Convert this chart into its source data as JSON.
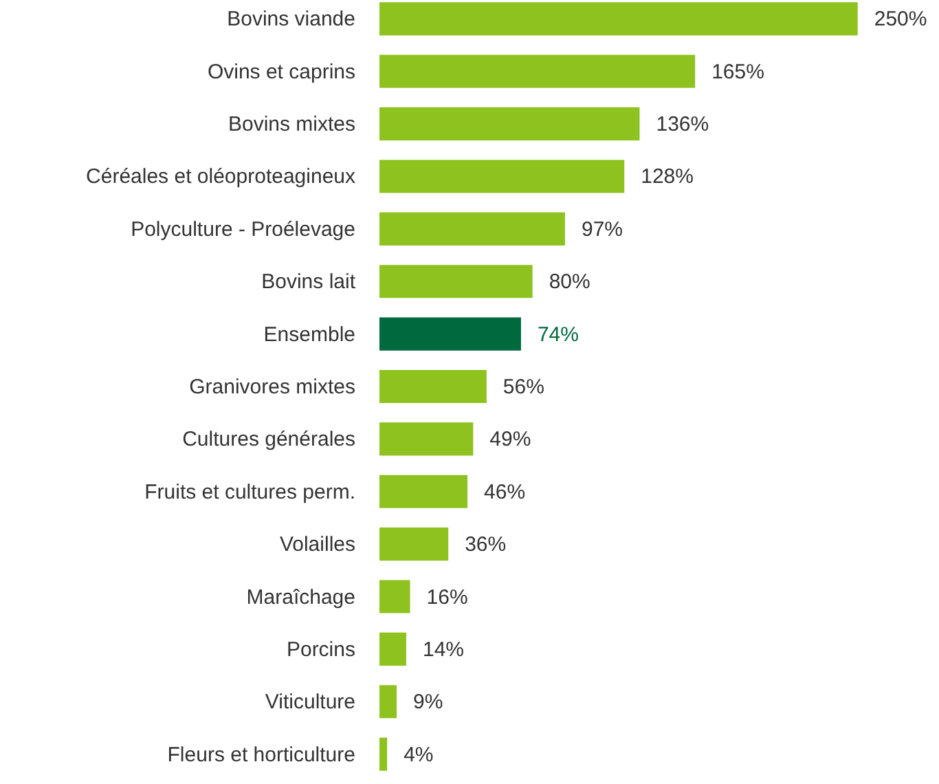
{
  "chart_data": {
    "type": "bar",
    "orientation": "horizontal",
    "categories": [
      "Bovins viande",
      "Ovins et caprins",
      "Bovins mixtes",
      "Céréales et oléoproteagineux",
      "Polyculture - Proélevage",
      "Bovins lait",
      "Ensemble",
      "Granivores mixtes",
      "Cultures générales",
      "Fruits et cultures perm.",
      "Volailles",
      "Maraîchage",
      "Porcins",
      "Viticulture",
      "Fleurs et horticulture"
    ],
    "values": [
      250,
      165,
      136,
      128,
      97,
      80,
      74,
      56,
      49,
      46,
      36,
      16,
      14,
      9,
      4
    ],
    "value_labels": [
      "250%",
      "165%",
      "136%",
      "128%",
      "97%",
      "80%",
      "74%",
      "56%",
      "49%",
      "46%",
      "36%",
      "16%",
      "14%",
      "9%",
      "4%"
    ],
    "colors": [
      "#8dc21f",
      "#8dc21f",
      "#8dc21f",
      "#8dc21f",
      "#8dc21f",
      "#8dc21f",
      "#00693e",
      "#8dc21f",
      "#8dc21f",
      "#8dc21f",
      "#8dc21f",
      "#8dc21f",
      "#8dc21f",
      "#8dc21f",
      "#8dc21f"
    ],
    "data_labels": true
  }
}
